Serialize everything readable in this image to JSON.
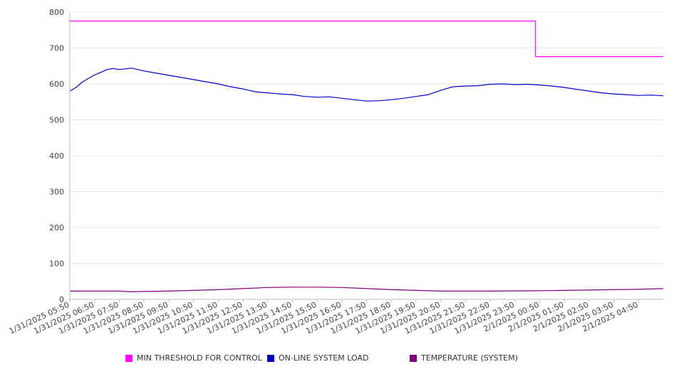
{
  "chart_data": {
    "type": "line",
    "title": "",
    "xlabel": "",
    "ylabel": "",
    "ylim": [
      0,
      800
    ],
    "yticks": [
      "0",
      "100",
      "200",
      "300",
      "400",
      "500",
      "600",
      "700",
      "800"
    ],
    "grid": true,
    "legend_position": "bottom",
    "x_tick_labels": [
      "1/31/2025 05:50",
      "1/31/2025 06:50",
      "1/31/2025 07:50",
      "1/31/2025 08:50",
      "1/31/2025 09:50",
      "1/31/2025 10:50",
      "1/31/2025 11:50",
      "1/31/2025 12:50",
      "1/31/2025 13:50",
      "1/31/2025 14:50",
      "1/31/2025 15:50",
      "1/31/2025 16:50",
      "1/31/2025 17:50",
      "1/31/2025 18:50",
      "1/31/2025 19:50",
      "1/31/2025 20:50",
      "1/31/2025 21:50",
      "1/31/2025 22:50",
      "1/31/2025 23:50",
      "2/1/2025 00:50",
      "2/1/2025 01:50",
      "2/1/2025 02:50",
      "2/1/2025 03:50",
      "2/1/2025 04:50"
    ],
    "x_range": [
      "1/31/2025 05:50",
      "2/1/2025 05:50"
    ],
    "series": [
      {
        "name": "MIN THRESHOLD FOR CONTROL",
        "color": "#ff00ff",
        "points": [
          [
            "1/31/2025 05:50",
            775
          ],
          [
            "2/1/2025 00:40",
            775
          ],
          [
            "2/1/2025 00:40",
            676
          ],
          [
            "2/1/2025 05:50",
            676
          ]
        ]
      },
      {
        "name": "ON-LINE SYSTEM LOAD",
        "color": "#0000cc",
        "points": [
          [
            "1/31/2025 05:50",
            580
          ],
          [
            "1/31/2025 06:05",
            590
          ],
          [
            "1/31/2025 06:20",
            605
          ],
          [
            "1/31/2025 06:35",
            615
          ],
          [
            "1/31/2025 06:50",
            625
          ],
          [
            "1/31/2025 07:05",
            632
          ],
          [
            "1/31/2025 07:20",
            640
          ],
          [
            "1/31/2025 07:35",
            643
          ],
          [
            "1/31/2025 07:50",
            640
          ],
          [
            "1/31/2025 08:05",
            642
          ],
          [
            "1/31/2025 08:20",
            644
          ],
          [
            "1/31/2025 08:35",
            640
          ],
          [
            "1/31/2025 08:50",
            636
          ],
          [
            "1/31/2025 09:20",
            630
          ],
          [
            "1/31/2025 09:50",
            624
          ],
          [
            "1/31/2025 10:20",
            618
          ],
          [
            "1/31/2025 10:50",
            612
          ],
          [
            "1/31/2025 11:20",
            606
          ],
          [
            "1/31/2025 11:50",
            600
          ],
          [
            "1/31/2025 12:20",
            592
          ],
          [
            "1/31/2025 12:50",
            586
          ],
          [
            "1/31/2025 13:20",
            578
          ],
          [
            "1/31/2025 13:50",
            575
          ],
          [
            "1/31/2025 14:20",
            572
          ],
          [
            "1/31/2025 14:50",
            570
          ],
          [
            "1/31/2025 15:20",
            565
          ],
          [
            "1/31/2025 15:50",
            563
          ],
          [
            "1/31/2025 16:20",
            564
          ],
          [
            "1/31/2025 16:50",
            560
          ],
          [
            "1/31/2025 17:20",
            556
          ],
          [
            "1/31/2025 17:50",
            552
          ],
          [
            "1/31/2025 18:20",
            553
          ],
          [
            "1/31/2025 18:50",
            556
          ],
          [
            "1/31/2025 19:20",
            560
          ],
          [
            "1/31/2025 19:50",
            565
          ],
          [
            "1/31/2025 20:20",
            570
          ],
          [
            "1/31/2025 20:50",
            582
          ],
          [
            "1/31/2025 21:20",
            592
          ],
          [
            "1/31/2025 21:50",
            594
          ],
          [
            "1/31/2025 22:20",
            595
          ],
          [
            "1/31/2025 22:50",
            599
          ],
          [
            "1/31/2025 23:20",
            600
          ],
          [
            "1/31/2025 23:50",
            598
          ],
          [
            "2/1/2025 00:20",
            599
          ],
          [
            "2/1/2025 00:50",
            597
          ],
          [
            "2/1/2025 01:20",
            594
          ],
          [
            "2/1/2025 01:50",
            590
          ],
          [
            "2/1/2025 02:20",
            585
          ],
          [
            "2/1/2025 02:50",
            580
          ],
          [
            "2/1/2025 03:20",
            575
          ],
          [
            "2/1/2025 03:50",
            572
          ],
          [
            "2/1/2025 04:20",
            570
          ],
          [
            "2/1/2025 04:50",
            568
          ],
          [
            "2/1/2025 05:20",
            569
          ],
          [
            "2/1/2025 05:50",
            567
          ]
        ]
      },
      {
        "name": "TEMPERATURE (SYSTEM)",
        "color": "#800080",
        "points": [
          [
            "1/31/2025 05:50",
            23
          ],
          [
            "1/31/2025 07:50",
            23
          ],
          [
            "1/31/2025 08:20",
            21
          ],
          [
            "1/31/2025 08:50",
            22
          ],
          [
            "1/31/2025 09:50",
            23
          ],
          [
            "1/31/2025 10:50",
            25
          ],
          [
            "1/31/2025 11:50",
            27
          ],
          [
            "1/31/2025 12:50",
            30
          ],
          [
            "1/31/2025 13:50",
            33
          ],
          [
            "1/31/2025 14:50",
            34
          ],
          [
            "1/31/2025 15:50",
            34
          ],
          [
            "1/31/2025 16:50",
            33
          ],
          [
            "1/31/2025 17:50",
            30
          ],
          [
            "1/31/2025 18:50",
            27
          ],
          [
            "1/31/2025 19:50",
            25
          ],
          [
            "1/31/2025 20:50",
            23
          ],
          [
            "1/31/2025 22:50",
            23
          ],
          [
            "2/1/2025 00:50",
            24
          ],
          [
            "2/1/2025 01:50",
            25
          ],
          [
            "2/1/2025 02:50",
            26
          ],
          [
            "2/1/2025 03:50",
            27
          ],
          [
            "2/1/2025 04:50",
            28
          ],
          [
            "2/1/2025 05:50",
            30
          ]
        ]
      }
    ]
  }
}
